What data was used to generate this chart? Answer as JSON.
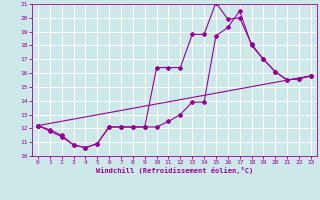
{
  "xlabel": "Windchill (Refroidissement éolien,°C)",
  "bg_color": "#cce8e8",
  "grid_color": "#ffffff",
  "line_color": "#990099",
  "xlim": [
    -0.5,
    23.5
  ],
  "ylim": [
    10,
    21
  ],
  "xticks": [
    0,
    1,
    2,
    3,
    4,
    5,
    6,
    7,
    8,
    9,
    10,
    11,
    12,
    13,
    14,
    15,
    16,
    17,
    18,
    19,
    20,
    21,
    22,
    23
  ],
  "yticks": [
    10,
    11,
    12,
    13,
    14,
    15,
    16,
    17,
    18,
    19,
    20,
    21
  ],
  "lines": [
    {
      "x": [
        0,
        1,
        2,
        3,
        4,
        5,
        6,
        7,
        8,
        9,
        10,
        11,
        12,
        13,
        14,
        15,
        16,
        17,
        18,
        19,
        20,
        21,
        22,
        23
      ],
      "y": [
        12.2,
        11.8,
        11.4,
        10.8,
        10.6,
        10.9,
        12.1,
        12.1,
        12.1,
        12.1,
        12.1,
        12.5,
        13.0,
        13.9,
        13.9,
        18.7,
        19.3,
        20.5,
        18.0,
        17.0,
        16.1,
        15.5,
        15.6,
        15.8
      ]
    },
    {
      "x": [
        0,
        1,
        2,
        3,
        4,
        5,
        6,
        7,
        8,
        9,
        10,
        11,
        12,
        13,
        14,
        15,
        16,
        17,
        18,
        19,
        20,
        21,
        22,
        23
      ],
      "y": [
        12.2,
        11.9,
        11.5,
        10.8,
        10.6,
        10.9,
        12.1,
        12.1,
        12.1,
        12.1,
        16.4,
        16.4,
        16.4,
        18.8,
        18.8,
        21.1,
        19.9,
        20.0,
        18.1,
        17.0,
        16.1,
        15.5,
        15.6,
        15.8
      ]
    },
    {
      "x": [
        0,
        23
      ],
      "y": [
        12.2,
        15.8
      ]
    }
  ],
  "marker": "D",
  "markersize": 2,
  "linewidth": 0.8
}
